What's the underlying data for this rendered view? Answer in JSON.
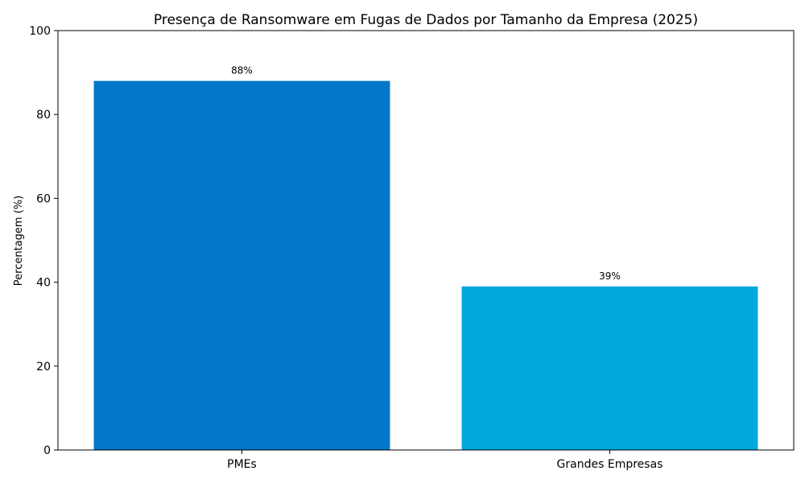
{
  "chart_data": {
    "type": "bar",
    "title": "Presença de Ransomware em Fugas de Dados por Tamanho da Empresa (2025)",
    "xlabel": "",
    "ylabel": "Percentagem (%)",
    "categories": [
      "PMEs",
      "Grandes Empresas"
    ],
    "values": [
      88,
      39
    ],
    "value_labels": [
      "88%",
      "39%"
    ],
    "colors": [
      "#0077C8",
      "#00A8DE"
    ],
    "ylim": [
      0,
      100
    ],
    "yticks": [
      0,
      20,
      40,
      60,
      80,
      100
    ],
    "grid": false,
    "legend": null
  }
}
